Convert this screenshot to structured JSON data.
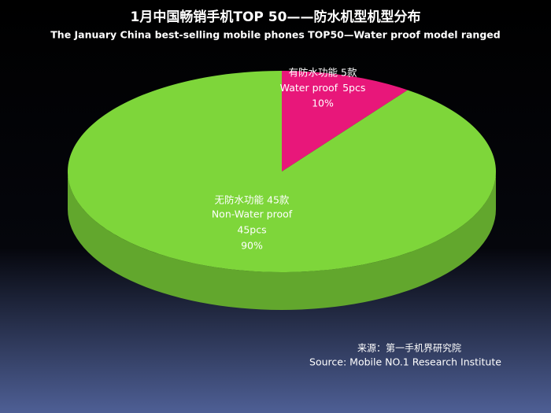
{
  "chart_data": {
    "type": "pie",
    "title": "1月中国畅销手机TOP 50——防水机型机型分布",
    "subtitle": "The January China best-selling mobile phones TOP50—Water proof model ranged",
    "categories": [
      "有防水功能 5款",
      "无防水功能 45款"
    ],
    "english_names": [
      "Water proof",
      "Non-Water proof"
    ],
    "unit_labels": [
      "5pcs",
      "45pcs"
    ],
    "values": [
      10,
      90
    ],
    "value_labels": [
      "10%",
      "90%"
    ],
    "colors": [
      "#e8177a",
      "#7ed63a"
    ],
    "source": "来源：第一手机界研究院",
    "source_en": "Source: Mobile NO.1 Research Institute"
  }
}
